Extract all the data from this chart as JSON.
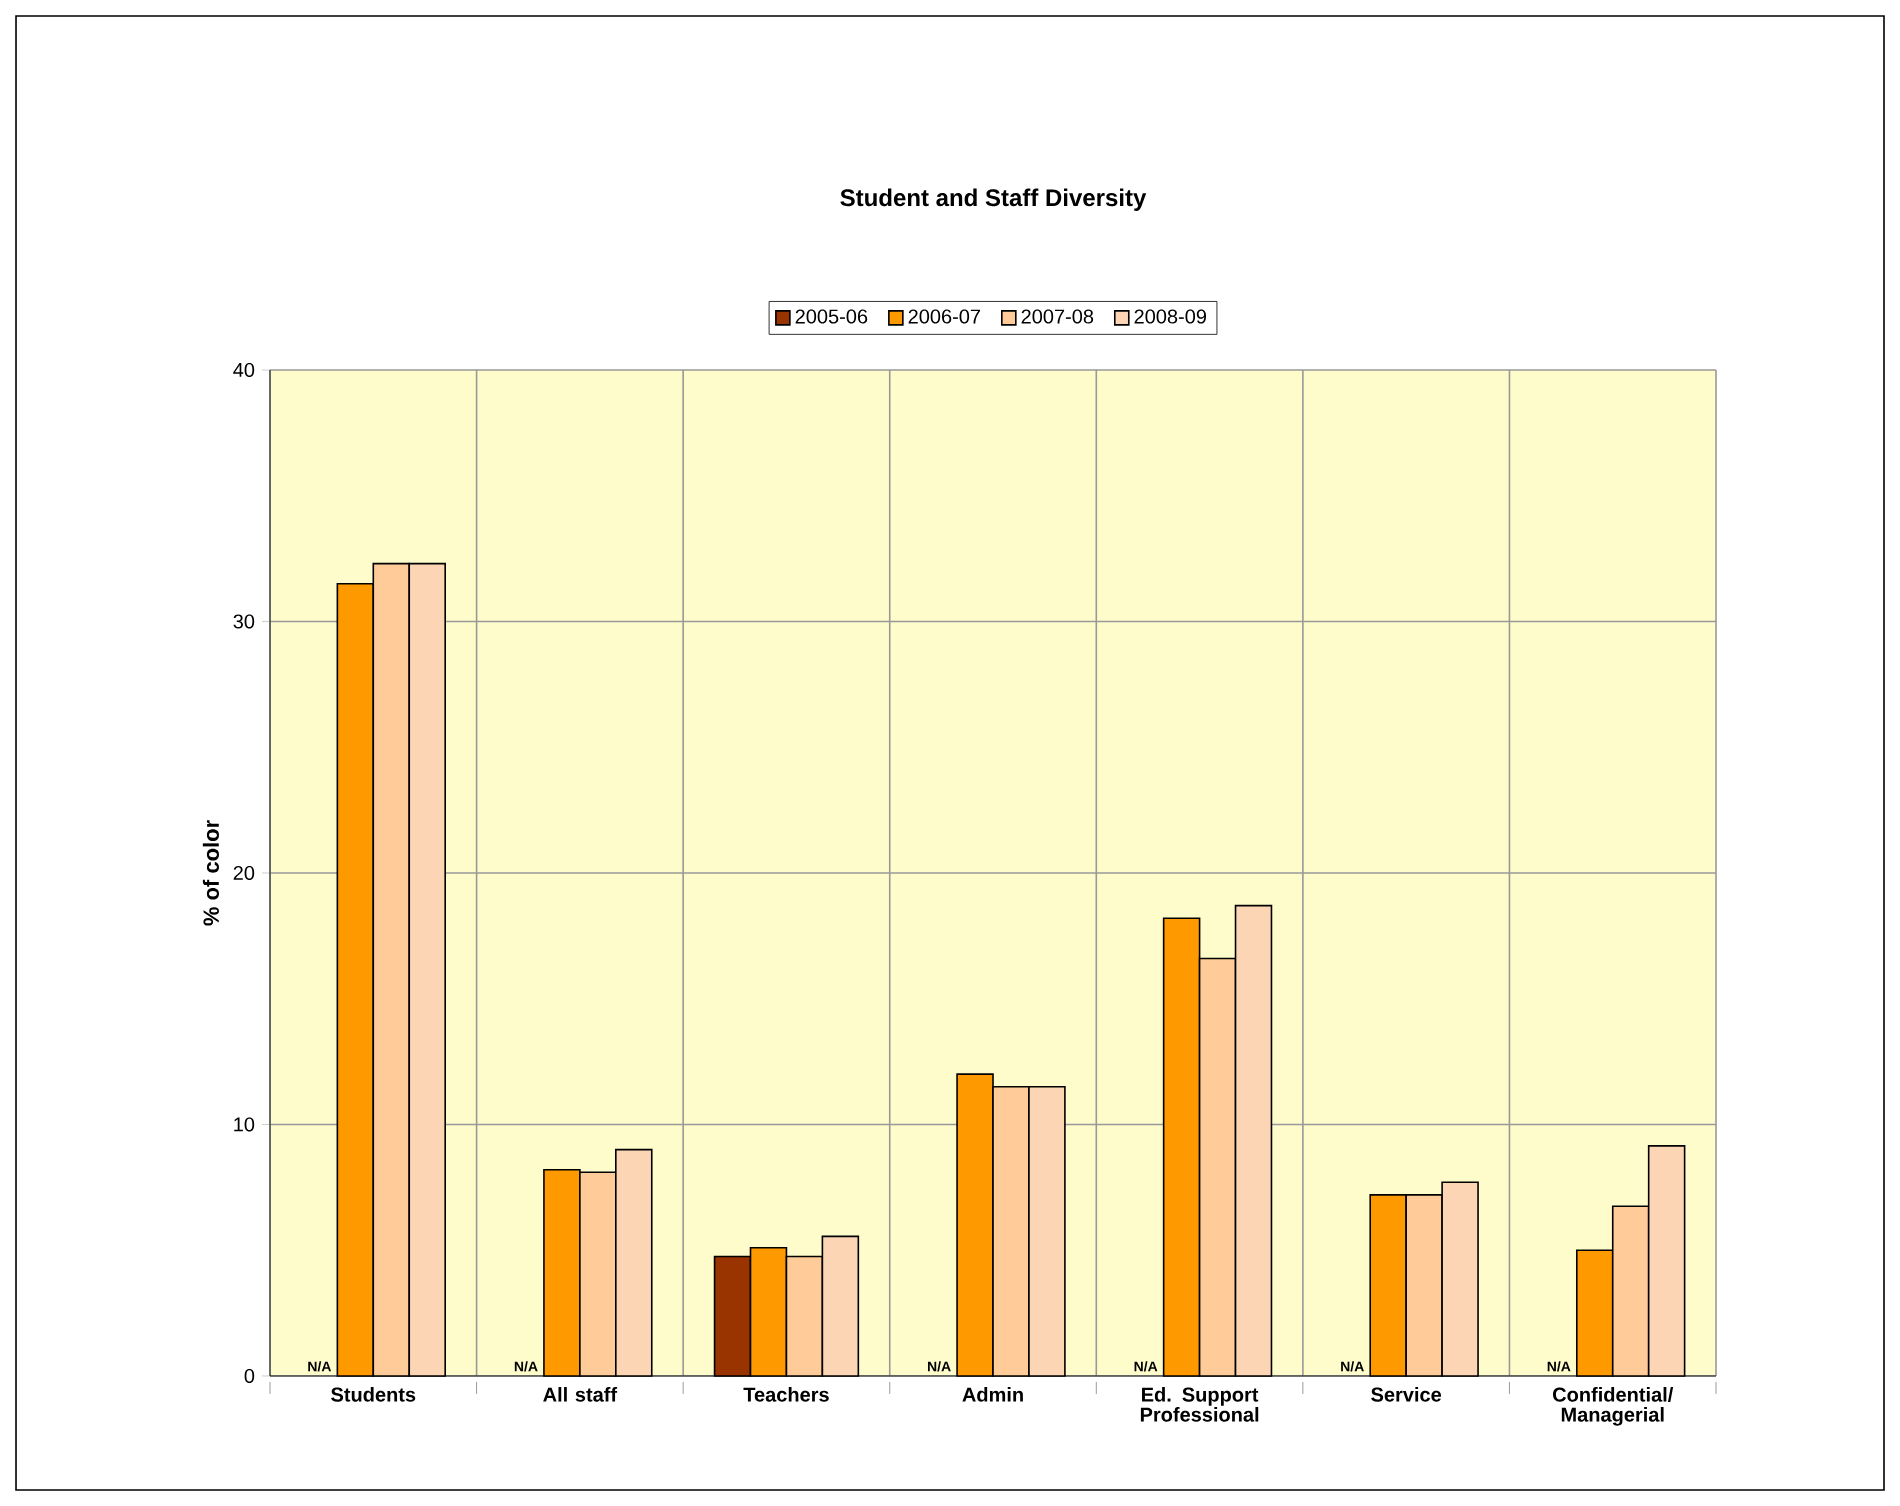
{
  "chart_data": {
    "type": "bar",
    "title": "Student and Staff Diversity",
    "ylabel": "% of color",
    "categories": [
      "Students",
      "All staff",
      "Teachers",
      "Admin",
      "Ed. Support Professional",
      "Service",
      "Confidential/ Managerial"
    ],
    "series": [
      {
        "name": "2005-06",
        "color": "#993300",
        "values": [
          null,
          null,
          4.75,
          null,
          null,
          null,
          null
        ],
        "value_labels": [
          "N/A",
          "N/A",
          null,
          "N/A",
          "N/A",
          "N/A",
          "N/A"
        ]
      },
      {
        "name": "2006-07",
        "color": "#ff9900",
        "values": [
          31.5,
          8.2,
          5.1,
          12.0,
          18.2,
          7.2,
          5.0
        ]
      },
      {
        "name": "2007-08",
        "color": "#ffcc99",
        "values": [
          32.3,
          8.1,
          4.75,
          11.5,
          16.6,
          7.2,
          6.75
        ]
      },
      {
        "name": "2008-09",
        "color": "#fcd5b4",
        "values": [
          32.3,
          9.0,
          5.55,
          11.5,
          18.7,
          7.7,
          9.15
        ]
      }
    ],
    "ylim": [
      0,
      40
    ],
    "yticks": [
      0,
      10,
      20,
      30,
      40
    ],
    "grid": true,
    "legend": "top"
  }
}
